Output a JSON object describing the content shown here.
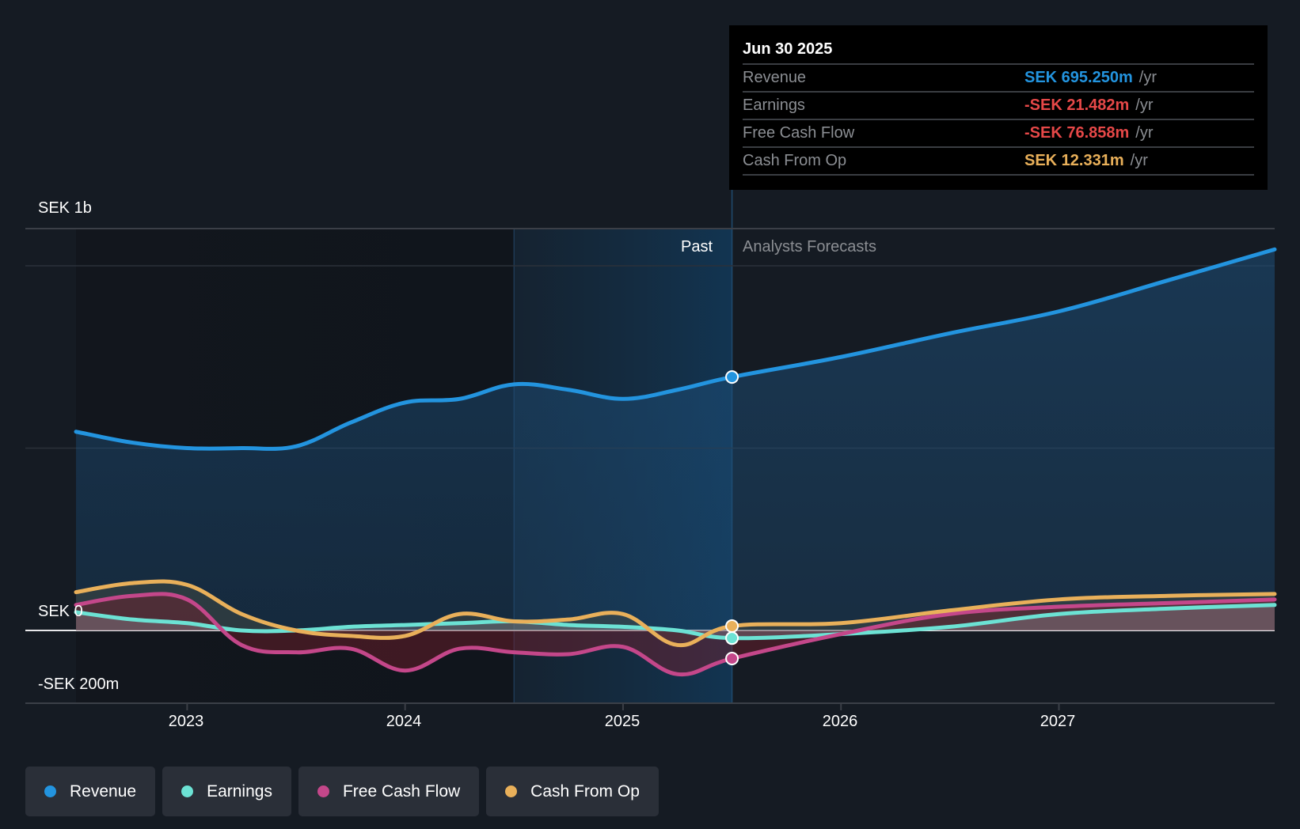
{
  "tooltip": {
    "date": "Jun 30 2025",
    "rows": [
      {
        "label": "Revenue",
        "value": "SEK 695.250m",
        "unit": "/yr",
        "color": "#2394df"
      },
      {
        "label": "Earnings",
        "value": "-SEK 21.482m",
        "unit": "/yr",
        "color": "#e64848"
      },
      {
        "label": "Free Cash Flow",
        "value": "-SEK 76.858m",
        "unit": "/yr",
        "color": "#e64848"
      },
      {
        "label": "Cash From Op",
        "value": "SEK 12.331m",
        "unit": "/yr",
        "color": "#e9b05a"
      }
    ]
  },
  "regions": {
    "past": "Past",
    "forecast": "Analysts Forecasts"
  },
  "legend": [
    {
      "label": "Revenue",
      "color": "#2394df"
    },
    {
      "label": "Earnings",
      "color": "#6ce2d4"
    },
    {
      "label": "Free Cash Flow",
      "color": "#c4478a"
    },
    {
      "label": "Cash From Op",
      "color": "#e9b05a"
    }
  ],
  "chart_data": {
    "type": "line",
    "title": "",
    "xlabel": "",
    "ylabel": "",
    "x_ticks": [
      "2023",
      "2024",
      "2025",
      "2026",
      "2027"
    ],
    "y_ticks": [
      "SEK 1b",
      "SEK 0",
      "-SEK 200m"
    ],
    "y_tick_values": [
      1000,
      0,
      -200
    ],
    "ylim": [
      -200,
      1100
    ],
    "xlim": [
      2022.49,
      2027.99
    ],
    "grid": true,
    "past_region_start": 2024.5,
    "forecast_start": 2025.5,
    "units": "SEK millions per year",
    "x": [
      2022.49,
      2022.75,
      2023.0,
      2023.25,
      2023.5,
      2023.75,
      2024.0,
      2024.25,
      2024.5,
      2024.75,
      2025.0,
      2025.25,
      2025.5,
      2026.0,
      2026.5,
      2027.0,
      2027.5,
      2027.99
    ],
    "series": [
      {
        "name": "Revenue",
        "color": "#2394df",
        "values": [
          545,
          515,
          500,
          500,
          505,
          570,
          625,
          635,
          675,
          660,
          635,
          660,
          695,
          750,
          815,
          875,
          960,
          1045
        ]
      },
      {
        "name": "Earnings",
        "color": "#6ce2d4",
        "values": [
          50,
          30,
          20,
          0,
          0,
          10,
          15,
          20,
          25,
          15,
          10,
          0,
          -21,
          -10,
          10,
          45,
          60,
          70
        ]
      },
      {
        "name": "Free Cash Flow",
        "color": "#c4478a",
        "values": [
          70,
          95,
          85,
          -40,
          -60,
          -50,
          -110,
          -50,
          -60,
          -65,
          -45,
          -120,
          -77,
          -10,
          45,
          65,
          75,
          85
        ]
      },
      {
        "name": "Cash From Op",
        "color": "#e9b05a",
        "values": [
          105,
          130,
          125,
          45,
          0,
          -15,
          -15,
          45,
          25,
          30,
          45,
          -40,
          12,
          20,
          55,
          85,
          95,
          100
        ]
      }
    ],
    "highlight_x": 2025.5
  }
}
